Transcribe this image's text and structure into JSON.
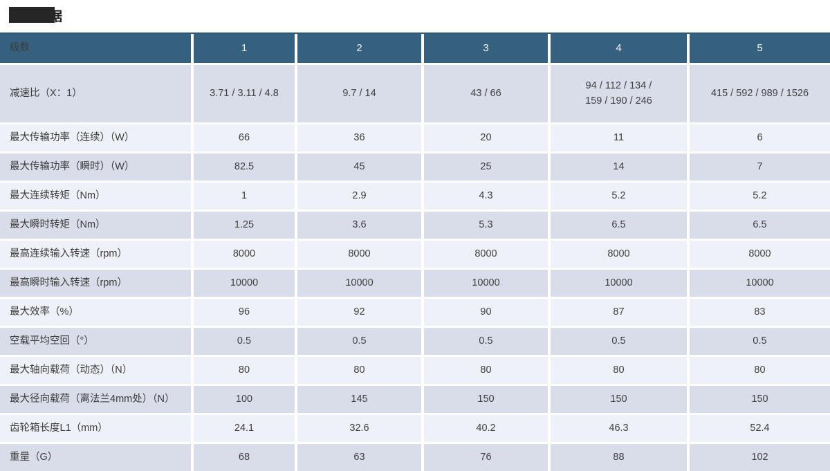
{
  "page": {
    "title": "技术数据"
  },
  "colors": {
    "header_bg": "#35617F",
    "header_text": "#F2F4F6",
    "row_dark": "#D9DDE9",
    "row_light": "#EEF1F7",
    "label_text": "#3C3C3C",
    "value_text": "#404040",
    "top_border": "#2E5876",
    "title_text": "#1E1E1E",
    "redaction": "#262626"
  },
  "table": {
    "header": [
      "级数",
      "1",
      "2",
      "3",
      "4",
      "5"
    ],
    "rows": [
      {
        "label": "减速比（X：1）",
        "values": [
          "3.71 / 3.11 / 4.8",
          "9.7 / 14",
          "43 / 66",
          "94 / 112 / 134 /\n159 / 190 / 246",
          "415 / 592 / 989 / 1526"
        ]
      },
      {
        "label": "最大传输功率（连续）（W）",
        "values": [
          "66",
          "36",
          "20",
          "11",
          "6"
        ]
      },
      {
        "label": "最大传输功率（瞬时）（W）",
        "values": [
          "82.5",
          "45",
          "25",
          "14",
          "7"
        ]
      },
      {
        "label": "最大连续转矩（Nm）",
        "values": [
          "1",
          "2.9",
          "4.3",
          "5.2",
          "5.2"
        ]
      },
      {
        "label": "最大瞬时转矩（Nm）",
        "values": [
          "1.25",
          "3.6",
          "5.3",
          "6.5",
          "6.5"
        ]
      },
      {
        "label": "最高连续输入转速（rpm）",
        "values": [
          "8000",
          "8000",
          "8000",
          "8000",
          "8000"
        ]
      },
      {
        "label": "最高瞬时输入转速（rpm）",
        "values": [
          "10000",
          "10000",
          "10000",
          "10000",
          "10000"
        ]
      },
      {
        "label": "最大效率（%）",
        "values": [
          "96",
          "92",
          "90",
          "87",
          "83"
        ]
      },
      {
        "label": "空载平均空回（°）",
        "values": [
          "0.5",
          "0.5",
          "0.5",
          "0.5",
          "0.5"
        ]
      },
      {
        "label": "最大轴向载荷（动态）（N）",
        "values": [
          "80",
          "80",
          "80",
          "80",
          "80"
        ]
      },
      {
        "label": "最大径向载荷（离法兰4mm处）（N）",
        "values": [
          "100",
          "145",
          "150",
          "150",
          "150"
        ]
      },
      {
        "label": "齿轮箱长度L1（mm）",
        "values": [
          "24.1",
          "32.6",
          "40.2",
          "46.3",
          "52.4"
        ]
      },
      {
        "label": "重量（G）",
        "values": [
          "68",
          "63",
          "76",
          "88",
          "102"
        ]
      }
    ]
  }
}
